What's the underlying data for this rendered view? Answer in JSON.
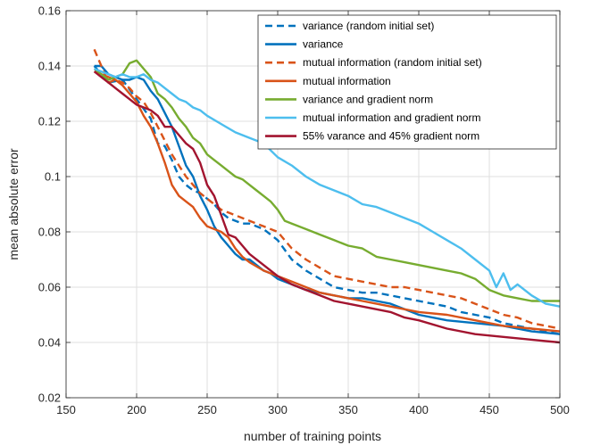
{
  "chart_data": {
    "type": "line",
    "title": "",
    "xlabel": "number of training points",
    "ylabel": "mean absolute error",
    "xlim": [
      150,
      500
    ],
    "ylim": [
      0.02,
      0.16
    ],
    "xticks": [
      150,
      200,
      250,
      300,
      350,
      400,
      450,
      500
    ],
    "yticks": [
      0.02,
      0.04,
      0.06,
      0.08,
      0.1,
      0.12,
      0.14,
      0.16
    ],
    "xtick_labels": [
      "150",
      "200",
      "250",
      "300",
      "350",
      "400",
      "450",
      "500"
    ],
    "ytick_labels": [
      "0.02",
      "0.04",
      "0.06",
      "0.08",
      "0.1",
      "0.12",
      "0.14",
      "0.16"
    ],
    "grid": true,
    "legend_position": "top-right",
    "series": [
      {
        "name": "variance (random initial set)",
        "color": "#0072BD",
        "dash": "dashed",
        "x": [
          170,
          180,
          190,
          200,
          210,
          215,
          220,
          225,
          230,
          235,
          240,
          245,
          250,
          255,
          260,
          265,
          270,
          275,
          280,
          290,
          300,
          310,
          320,
          330,
          340,
          350,
          360,
          370,
          380,
          390,
          400,
          410,
          420,
          430,
          440,
          450,
          460,
          470,
          480,
          490,
          500
        ],
        "y": [
          0.14,
          0.134,
          0.135,
          0.128,
          0.121,
          0.112,
          0.111,
          0.106,
          0.1,
          0.097,
          0.095,
          0.094,
          0.092,
          0.09,
          0.087,
          0.085,
          0.084,
          0.083,
          0.083,
          0.081,
          0.077,
          0.07,
          0.066,
          0.063,
          0.06,
          0.059,
          0.058,
          0.058,
          0.057,
          0.056,
          0.055,
          0.054,
          0.053,
          0.051,
          0.05,
          0.049,
          0.047,
          0.046,
          0.045,
          0.044,
          0.043
        ]
      },
      {
        "name": "variance",
        "color": "#0072BD",
        "dash": "solid",
        "x": [
          170,
          175,
          180,
          185,
          190,
          195,
          200,
          205,
          210,
          215,
          220,
          225,
          230,
          235,
          240,
          245,
          250,
          255,
          260,
          265,
          270,
          275,
          280,
          285,
          290,
          295,
          300,
          310,
          320,
          330,
          340,
          350,
          360,
          370,
          380,
          390,
          400,
          420,
          440,
          460,
          480,
          500
        ],
        "y": [
          0.14,
          0.14,
          0.137,
          0.136,
          0.135,
          0.135,
          0.136,
          0.135,
          0.131,
          0.128,
          0.123,
          0.118,
          0.111,
          0.104,
          0.1,
          0.093,
          0.088,
          0.082,
          0.078,
          0.075,
          0.072,
          0.07,
          0.07,
          0.068,
          0.066,
          0.065,
          0.063,
          0.061,
          0.059,
          0.058,
          0.057,
          0.056,
          0.056,
          0.055,
          0.054,
          0.052,
          0.05,
          0.048,
          0.047,
          0.046,
          0.044,
          0.043
        ]
      },
      {
        "name": "mutual information (random initial set)",
        "color": "#D95319",
        "dash": "dashed",
        "x": [
          170,
          175,
          180,
          185,
          190,
          195,
          200,
          205,
          210,
          215,
          220,
          225,
          230,
          235,
          240,
          245,
          250,
          255,
          260,
          265,
          270,
          280,
          290,
          300,
          310,
          320,
          330,
          340,
          350,
          360,
          370,
          380,
          390,
          400,
          410,
          420,
          430,
          440,
          450,
          460,
          470,
          480,
          490,
          500
        ],
        "y": [
          0.146,
          0.14,
          0.134,
          0.135,
          0.134,
          0.132,
          0.129,
          0.127,
          0.123,
          0.118,
          0.113,
          0.108,
          0.104,
          0.1,
          0.097,
          0.094,
          0.092,
          0.09,
          0.088,
          0.087,
          0.086,
          0.084,
          0.082,
          0.08,
          0.074,
          0.07,
          0.067,
          0.064,
          0.063,
          0.062,
          0.061,
          0.06,
          0.06,
          0.059,
          0.058,
          0.057,
          0.056,
          0.054,
          0.052,
          0.05,
          0.049,
          0.047,
          0.046,
          0.045
        ]
      },
      {
        "name": "mutual information",
        "color": "#D95319",
        "dash": "solid",
        "x": [
          170,
          175,
          180,
          185,
          190,
          195,
          200,
          205,
          210,
          215,
          220,
          225,
          230,
          235,
          240,
          245,
          250,
          255,
          260,
          265,
          270,
          275,
          280,
          290,
          300,
          310,
          320,
          330,
          340,
          350,
          360,
          370,
          380,
          390,
          400,
          420,
          440,
          460,
          480,
          500
        ],
        "y": [
          0.138,
          0.137,
          0.136,
          0.135,
          0.133,
          0.13,
          0.127,
          0.122,
          0.118,
          0.112,
          0.105,
          0.097,
          0.093,
          0.091,
          0.089,
          0.085,
          0.082,
          0.081,
          0.08,
          0.078,
          0.074,
          0.071,
          0.069,
          0.066,
          0.064,
          0.062,
          0.06,
          0.058,
          0.057,
          0.056,
          0.055,
          0.054,
          0.053,
          0.052,
          0.051,
          0.05,
          0.048,
          0.046,
          0.045,
          0.044
        ]
      },
      {
        "name": "variance and gradient norm",
        "color": "#77AC30",
        "dash": "solid",
        "x": [
          170,
          175,
          180,
          185,
          190,
          195,
          200,
          205,
          210,
          215,
          220,
          225,
          230,
          235,
          240,
          245,
          250,
          255,
          260,
          265,
          270,
          275,
          280,
          285,
          290,
          295,
          300,
          305,
          310,
          320,
          330,
          340,
          350,
          360,
          370,
          380,
          390,
          400,
          410,
          420,
          430,
          440,
          450,
          460,
          470,
          480,
          490,
          500
        ],
        "y": [
          0.139,
          0.137,
          0.135,
          0.136,
          0.137,
          0.141,
          0.142,
          0.139,
          0.136,
          0.13,
          0.128,
          0.125,
          0.121,
          0.118,
          0.114,
          0.112,
          0.108,
          0.106,
          0.104,
          0.102,
          0.1,
          0.099,
          0.097,
          0.095,
          0.093,
          0.091,
          0.088,
          0.084,
          0.083,
          0.081,
          0.079,
          0.077,
          0.075,
          0.074,
          0.071,
          0.07,
          0.069,
          0.068,
          0.067,
          0.066,
          0.065,
          0.063,
          0.059,
          0.057,
          0.056,
          0.055,
          0.055,
          0.055
        ]
      },
      {
        "name": "mutual information and gradient norm",
        "color": "#4DBEEE",
        "dash": "solid",
        "x": [
          170,
          175,
          180,
          185,
          190,
          195,
          200,
          205,
          210,
          215,
          220,
          225,
          230,
          235,
          240,
          245,
          250,
          260,
          270,
          280,
          290,
          300,
          310,
          320,
          330,
          340,
          350,
          360,
          370,
          380,
          390,
          400,
          410,
          420,
          430,
          440,
          450,
          455,
          460,
          465,
          470,
          480,
          490,
          500
        ],
        "y": [
          0.139,
          0.138,
          0.137,
          0.136,
          0.137,
          0.136,
          0.136,
          0.137,
          0.135,
          0.134,
          0.132,
          0.13,
          0.128,
          0.127,
          0.125,
          0.124,
          0.122,
          0.119,
          0.116,
          0.114,
          0.112,
          0.107,
          0.104,
          0.1,
          0.097,
          0.095,
          0.093,
          0.09,
          0.089,
          0.087,
          0.085,
          0.083,
          0.08,
          0.077,
          0.074,
          0.07,
          0.066,
          0.06,
          0.065,
          0.059,
          0.061,
          0.057,
          0.054,
          0.053
        ]
      },
      {
        "name": "55% varance and 45% gradient norm",
        "color": "#A2142F",
        "dash": "solid",
        "x": [
          170,
          175,
          180,
          185,
          190,
          195,
          200,
          205,
          210,
          215,
          220,
          225,
          230,
          235,
          240,
          245,
          250,
          255,
          260,
          265,
          270,
          275,
          280,
          290,
          300,
          310,
          320,
          330,
          340,
          350,
          360,
          370,
          380,
          390,
          400,
          420,
          440,
          460,
          480,
          500
        ],
        "y": [
          0.138,
          0.136,
          0.134,
          0.132,
          0.13,
          0.128,
          0.126,
          0.125,
          0.124,
          0.122,
          0.118,
          0.118,
          0.115,
          0.112,
          0.11,
          0.105,
          0.097,
          0.093,
          0.086,
          0.079,
          0.078,
          0.075,
          0.072,
          0.068,
          0.064,
          0.061,
          0.059,
          0.057,
          0.055,
          0.054,
          0.053,
          0.052,
          0.051,
          0.049,
          0.048,
          0.045,
          0.043,
          0.042,
          0.041,
          0.04
        ]
      }
    ]
  }
}
